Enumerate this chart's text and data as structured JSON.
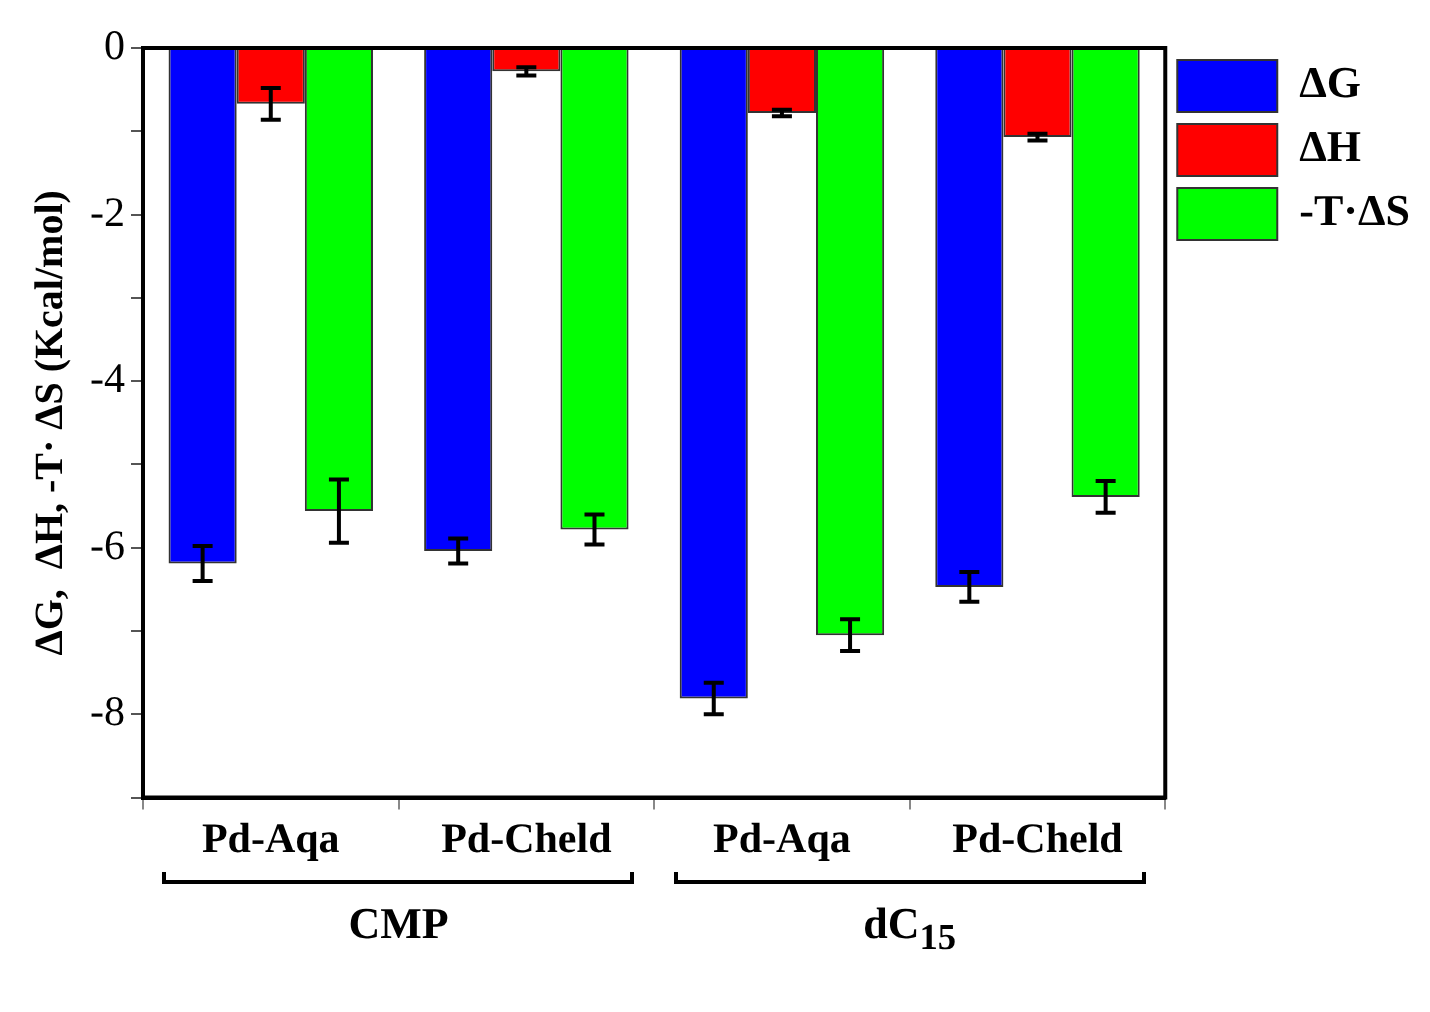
{
  "chart_data": {
    "type": "bar",
    "ylabel": "ΔG,  ΔH, -T· ΔS (Kcal/mol)",
    "categories": [
      "Pd-Aqa",
      "Pd-Cheld",
      "Pd-Aqa",
      "Pd-Cheld"
    ],
    "series": [
      {
        "name": "ΔG",
        "color": "#0000ff",
        "values": [
          -6.19,
          -6.04,
          -7.81,
          -6.47
        ],
        "errors": [
          0.21,
          0.15,
          0.19,
          0.18
        ]
      },
      {
        "name": "ΔH",
        "color": "#ff0000",
        "values": [
          -0.67,
          -0.28,
          -0.78,
          -1.07
        ],
        "errors": [
          0.19,
          0.05,
          0.04,
          0.04
        ]
      },
      {
        "name": "-T·ΔS",
        "color": "#00ff00",
        "values": [
          -5.56,
          -5.78,
          -7.05,
          -5.39
        ],
        "errors": [
          0.38,
          0.18,
          0.19,
          0.19
        ]
      }
    ],
    "ylim": [
      -9,
      0
    ],
    "yticks": [
      0,
      {
        "value": -1,
        "label": null
      },
      -2,
      {
        "value": -3,
        "label": null
      },
      -4,
      {
        "value": -5,
        "label": null
      },
      -6,
      {
        "value": -7,
        "label": null
      },
      -8,
      {
        "value": -9,
        "label": null
      }
    ],
    "legend": "top right",
    "annotations": [
      "CMP",
      "dC$_{15}$"
    ]
  }
}
